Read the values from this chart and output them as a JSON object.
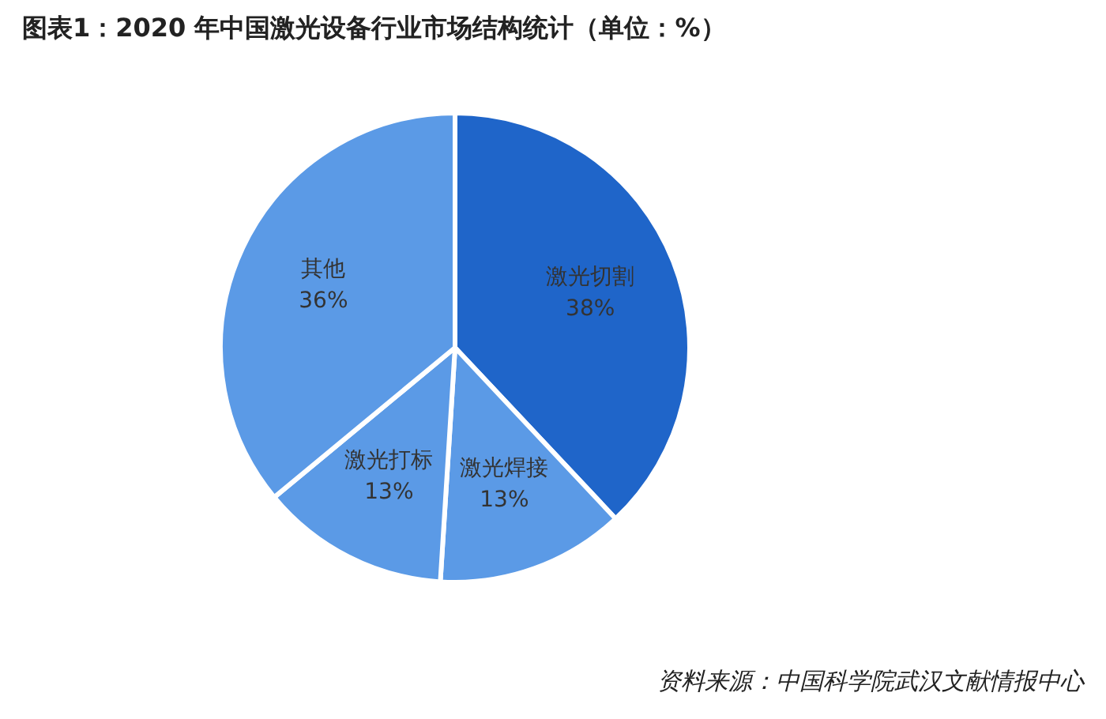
{
  "chart_data": {
    "type": "pie",
    "title": "图表1：2020 年中国激光设备行业市场结构统计（单位：%）",
    "categories": [
      "激光切割",
      "激光焊接",
      "激光打标",
      "其他"
    ],
    "values": [
      38,
      13,
      13,
      36
    ],
    "value_labels": [
      "38%",
      "13%",
      "13%",
      "36%"
    ],
    "colors": [
      "#1f65c9",
      "#5b9ae6",
      "#5b9ae6",
      "#5b9ae6"
    ],
    "legend": false,
    "annotations": [
      "资料来源：中国科学院武汉文献情报中心"
    ]
  }
}
